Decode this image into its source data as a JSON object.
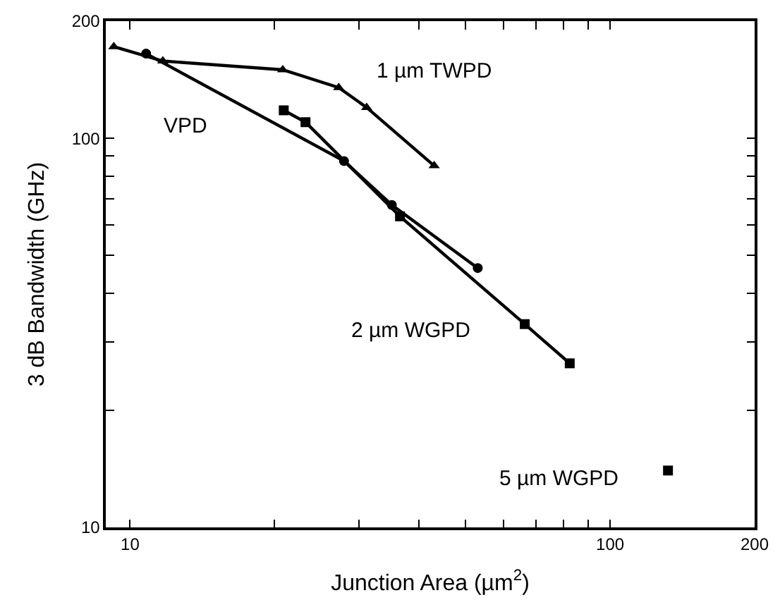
{
  "chart_data": {
    "type": "line",
    "xlabel": "Junction Area (µm$^{2}$)",
    "ylabel": "3 dB Bandwidth (GHz)",
    "log": "xy",
    "grid": false,
    "legend": false,
    "line_style": "solid",
    "xlim": [
      8.9,
      200
    ],
    "ylim": [
      10,
      200
    ],
    "xticks": [
      10,
      {
        "value": 20,
        "label": null
      },
      {
        "value": 30,
        "label": null
      },
      {
        "value": 40,
        "label": null
      },
      {
        "value": 50,
        "label": null
      },
      {
        "value": 60,
        "label": null
      },
      {
        "value": 70,
        "label": null
      },
      {
        "value": 80,
        "label": null
      },
      {
        "value": 90,
        "label": null
      },
      100,
      200
    ],
    "yticks": [
      10,
      {
        "value": 20,
        "label": null
      },
      {
        "value": 30,
        "label": null
      },
      {
        "value": 40,
        "label": null
      },
      {
        "value": 50,
        "label": null
      },
      {
        "value": 60,
        "label": null
      },
      {
        "value": 70,
        "label": null
      },
      {
        "value": 80,
        "label": null
      },
      {
        "value": 90,
        "label": null
      },
      100,
      200
    ],
    "series": [
      {
        "name": "1 µm TWPD",
        "color": "#000000",
        "marker": "triangle",
        "x": [
          9.25,
          11.7,
          20.8,
          27.2,
          31.1,
          43
        ],
        "values": [
          172,
          158,
          150,
          135,
          120,
          85
        ]
      },
      {
        "name": "VPD",
        "color": "#000000",
        "marker": "circle",
        "x": [
          10.8,
          27.9,
          35.1,
          53
        ],
        "values": [
          165,
          87.4,
          67.4,
          46.4
        ]
      },
      {
        "name": "2 µm WGPD",
        "color": "#000000",
        "marker": "square",
        "x": [
          20.9,
          23.2,
          36.5,
          66.4,
          82.4
        ],
        "values": [
          118,
          110,
          63,
          33.3,
          26.4
        ]
      },
      {
        "name": "5 µm WGPD",
        "color": "#000000",
        "marker": "square",
        "type": "scatter",
        "x": [
          132
        ],
        "values": [
          14.0
        ]
      }
    ]
  }
}
